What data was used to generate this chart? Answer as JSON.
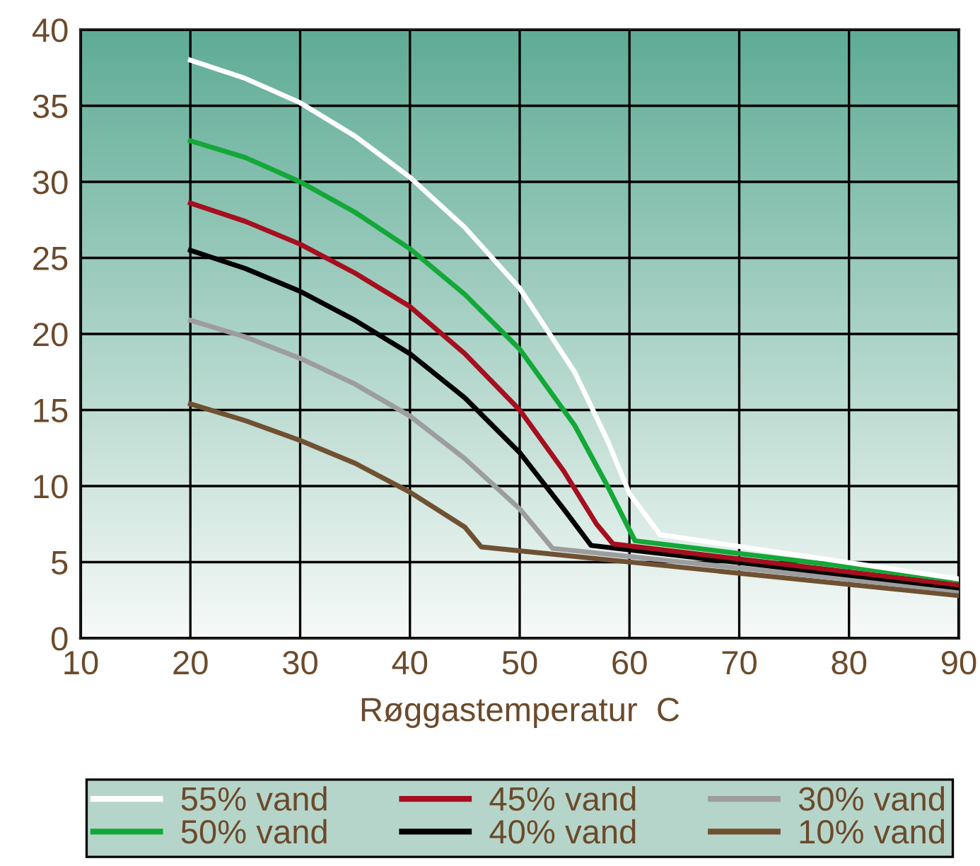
{
  "chart_data": {
    "type": "line",
    "xlabel": "Røggastemperatur  C",
    "xlim": [
      10,
      90
    ],
    "xticks": [
      10,
      20,
      30,
      40,
      50,
      60,
      70,
      80,
      90
    ],
    "ylim": [
      0,
      40
    ],
    "yticks": [
      0,
      5,
      10,
      15,
      20,
      25,
      30,
      35,
      40
    ],
    "grid": true,
    "legend": "bottom",
    "line_style": "solid",
    "marker": "none",
    "series": [
      {
        "name": "55% vand",
        "color": "#ffffff",
        "x": [
          20,
          25,
          30,
          35,
          40,
          45,
          50,
          55,
          58,
          60,
          62.8,
          90
        ],
        "values": [
          38,
          36.8,
          35.2,
          33,
          30.3,
          27,
          23,
          17.5,
          13,
          9.5,
          6.8,
          3.9
        ]
      },
      {
        "name": "50% vand",
        "color": "#13a838",
        "x": [
          20,
          25,
          30,
          35,
          40,
          45,
          50,
          55,
          58,
          60.5,
          90
        ],
        "values": [
          32.7,
          31.6,
          30,
          28,
          25.6,
          22.6,
          19,
          14,
          10,
          6.4,
          3.8
        ]
      },
      {
        "name": "45% vand",
        "color": "#a50f1f",
        "x": [
          20,
          25,
          30,
          35,
          40,
          45,
          50,
          54,
          57,
          58.5,
          90
        ],
        "values": [
          28.6,
          27.4,
          25.9,
          24,
          21.8,
          18.7,
          15,
          11,
          7.5,
          6.2,
          3.5
        ]
      },
      {
        "name": "40% vand",
        "color": "#000000",
        "x": [
          20,
          25,
          30,
          35,
          40,
          45,
          50,
          54,
          56.5,
          90
        ],
        "values": [
          25.5,
          24.3,
          22.8,
          20.9,
          18.7,
          15.8,
          12.2,
          8.5,
          6.1,
          3.3
        ]
      },
      {
        "name": "30% vand",
        "color": "#9d9d9f",
        "x": [
          20,
          25,
          30,
          35,
          40,
          45,
          50,
          53,
          90
        ],
        "values": [
          20.9,
          19.8,
          18.4,
          16.7,
          14.6,
          11.8,
          8.5,
          5.9,
          3.1
        ]
      },
      {
        "name": "10% vand",
        "color": "#6f5132",
        "x": [
          20,
          25,
          30,
          35,
          40,
          45,
          46.5,
          90
        ],
        "values": [
          15.4,
          14.3,
          13,
          11.5,
          9.6,
          7.3,
          6.0,
          2.8
        ]
      }
    ]
  }
}
